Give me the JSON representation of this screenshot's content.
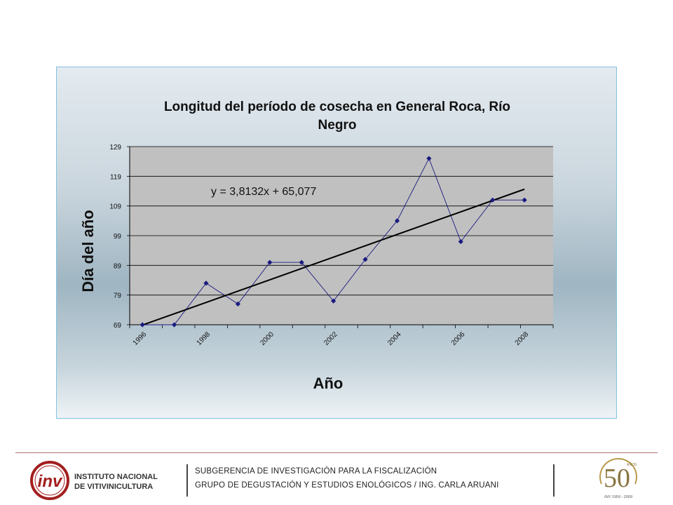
{
  "chart_data": {
    "type": "scatter",
    "title": "Longitud del período de cosecha en General Roca, Río Negro",
    "xlabel": "Año",
    "ylabel": "Día del año",
    "x_ticks": [
      "1996",
      "1998",
      "2000",
      "2002",
      "2004",
      "2006",
      "2008"
    ],
    "y_ticks": [
      "69",
      "79",
      "89",
      "99",
      "109",
      "119",
      "129"
    ],
    "ylim": [
      69,
      129
    ],
    "grid": true,
    "series": [
      {
        "x": [
          1996,
          1997,
          1998,
          1999,
          2000,
          2001,
          2002,
          2003,
          2004,
          2005,
          2006,
          2007,
          2008
        ],
        "y": [
          69,
          69,
          83,
          76,
          90,
          90,
          77,
          91,
          104,
          125,
          97,
          111,
          111
        ],
        "color": "#1a1a80"
      }
    ],
    "trendline": {
      "equation": "y = 3,8132x + 65,077",
      "slope": 3.8132,
      "intercept": 65.077,
      "color": "#000000"
    }
  },
  "footer": {
    "logo_text_line1": "INSTITUTO NACIONAL",
    "logo_text_line2": "DE VITIVINICULTURA",
    "logo_mark": "inv",
    "line1": "SUBGERENCIA DE INVESTIGACIÓN PARA LA FISCALIZACIÓN",
    "line2": "GRUPO DE DEGUSTACIÓN Y ESTUDIOS ENOLÓGICOS / ING. CARLA ARUANI",
    "anniversary_number": "50",
    "anniversary_small": "AÑOS",
    "anniversary_years": "INV 1959 - 2009"
  },
  "colors": {
    "plot_bg": "#c0c0c0",
    "marker": "#1a1a80",
    "inv_red": "#a31f1f"
  }
}
